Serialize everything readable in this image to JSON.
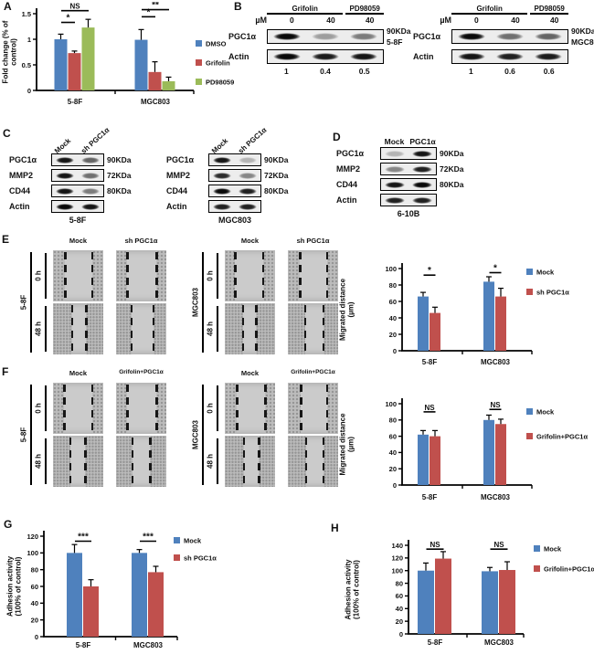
{
  "panels": {
    "A": {
      "label": "A"
    },
    "B": {
      "label": "B",
      "groups": [
        {
          "unit_label": "µM",
          "treatments": [
            {
              "name": "Grifolin",
              "lanes": 2
            },
            {
              "name": "PD98059",
              "lanes": 1
            }
          ],
          "doses": [
            "0",
            "40",
            "40"
          ],
          "rows": [
            {
              "protein": "PGC1α",
              "kda": "90KDa",
              "bands": [
                1,
                0.35,
                0.5
              ]
            },
            {
              "protein": "Actin",
              "kda": "",
              "bands": [
                1,
                0.92,
                0.95
              ]
            }
          ],
          "cell_line": "5-8F",
          "quantification": [
            "1",
            "0.4",
            "0.5"
          ]
        },
        {
          "unit_label": "µM",
          "treatments": [
            {
              "name": "Grifolin",
              "lanes": 2
            },
            {
              "name": "PD98059",
              "lanes": 1
            }
          ],
          "doses": [
            "0",
            "40",
            "40"
          ],
          "rows": [
            {
              "protein": "PGC1α",
              "kda": "90KDa",
              "bands": [
                1,
                0.55,
                0.6
              ]
            },
            {
              "protein": "Actin",
              "kda": "",
              "bands": [
                0.95,
                0.9,
                0.92
              ]
            }
          ],
          "cell_line": "MGC803",
          "quantification": [
            "1",
            "0.6",
            "0.6"
          ]
        }
      ]
    },
    "C": {
      "label": "C",
      "groups": [
        {
          "columns": [
            "Mock",
            "sh PGC1α"
          ],
          "rows": [
            {
              "protein": "PGC1α",
              "kda": "90KDa",
              "bands": [
                0.95,
                0.6
              ]
            },
            {
              "protein": "MMP2",
              "kda": "72KDa",
              "bands": [
                0.95,
                0.55
              ]
            },
            {
              "protein": "CD44",
              "kda": "80KDa",
              "bands": [
                0.95,
                0.5
              ]
            },
            {
              "protein": "Actin",
              "kda": "",
              "bands": [
                1,
                0.95
              ]
            }
          ],
          "cell_line": "5-8F"
        },
        {
          "columns": [
            "Mock",
            "sh PGC1α"
          ],
          "rows": [
            {
              "protein": "PGC1α",
              "kda": "90KDa",
              "bands": [
                0.95,
                0.25
              ]
            },
            {
              "protein": "MMP2",
              "kda": "72KDa",
              "bands": [
                0.85,
                0.45
              ]
            },
            {
              "protein": "CD44",
              "kda": "80KDa",
              "bands": [
                1,
                0.9
              ]
            },
            {
              "protein": "Actin",
              "kda": "",
              "bands": [
                0.9,
                0.9
              ]
            }
          ],
          "cell_line": "MGC803"
        }
      ]
    },
    "D": {
      "label": "D",
      "columns": [
        "Mock",
        "PGC1α"
      ],
      "rows": [
        {
          "protein": "PGC1α",
          "kda": "90KDa",
          "bands": [
            0.25,
            0.95
          ]
        },
        {
          "protein": "MMP2",
          "kda": "72KDa",
          "bands": [
            0.45,
            0.9
          ]
        },
        {
          "protein": "CD44",
          "kda": "80KDa",
          "bands": [
            0.95,
            1
          ]
        },
        {
          "protein": "Actin",
          "kda": "",
          "bands": [
            0.9,
            0.9
          ]
        }
      ],
      "cell_line": "6-10B"
    },
    "E": {
      "label": "E",
      "image_groups": [
        {
          "cell_line": "5-8F",
          "columns": [
            "Mock",
            "sh PGC1α"
          ],
          "rows": [
            {
              "label": "0 h",
              "gaps": [
                [
                  24,
                  78
                ],
                [
                  22,
                  80
                ]
              ]
            },
            {
              "label": "48 h",
              "gaps": [
                [
                  38,
                  66
                ],
                [
                  30,
                  74
                ]
              ]
            }
          ]
        },
        {
          "cell_line": "MGC803",
          "columns": [
            "Mock",
            "sh PGC1α"
          ],
          "rows": [
            {
              "label": "0 h",
              "gaps": [
                [
                  20,
                  76
                ],
                [
                  24,
                  78
                ]
              ]
            },
            {
              "label": "48 h",
              "gaps": [
                [
                  36,
                  62
                ],
                [
                  34,
                  70
                ]
              ]
            }
          ]
        }
      ]
    },
    "F": {
      "label": "F",
      "image_groups": [
        {
          "cell_line": "5-8F",
          "columns": [
            "Mock",
            "Grifolin+PGC1α"
          ],
          "rows": [
            {
              "label": "0 h",
              "gaps": [
                [
                  22,
                  78
                ],
                [
                  22,
                  80
                ]
              ]
            },
            {
              "label": "48 h",
              "gaps": [
                [
                  34,
                  64
                ],
                [
                  32,
                  68
                ]
              ]
            }
          ]
        },
        {
          "cell_line": "MGC803",
          "columns": [
            "Mock",
            "Grifolin+PGC1α"
          ],
          "rows": [
            {
              "label": "0 h",
              "gaps": [
                [
                  24,
                  80
                ],
                [
                  26,
                  78
                ]
              ]
            },
            {
              "label": "48 h",
              "gaps": [
                [
                  38,
                  68
                ],
                [
                  36,
                  70
                ]
              ]
            }
          ]
        }
      ]
    },
    "G": {
      "label": "G"
    },
    "H": {
      "label": "H"
    }
  },
  "chart_data": [
    {
      "id": "panel-A",
      "type": "bar",
      "categories": [
        "5-8F",
        "MGC803"
      ],
      "series": [
        {
          "name": "DMSO",
          "color": "#4F81BD",
          "values": [
            1.0,
            0.99
          ],
          "errors": [
            0.1,
            0.2
          ]
        },
        {
          "name": "Grifolin",
          "color": "#C0504D",
          "values": [
            0.73,
            0.36
          ],
          "errors": [
            0.04,
            0.2
          ]
        },
        {
          "name": "PD98059",
          "color": "#9BBB59",
          "values": [
            1.23,
            0.18
          ],
          "errors": [
            0.16,
            0.08
          ]
        }
      ],
      "ylabel": "Fold change (% of\ncontrol)",
      "xlabel": "",
      "ylim": [
        0,
        1.5
      ],
      "yticks": [
        "0",
        "0.5",
        "1",
        "1.5"
      ],
      "legend_position": "right",
      "grid": false,
      "significance": [
        {
          "group": 0,
          "from": 0,
          "to": 1,
          "label": "*",
          "y": 1.33
        },
        {
          "group": 0,
          "from": 0,
          "to": 2,
          "label": "NS",
          "y": 1.56
        },
        {
          "group": 1,
          "from": 0,
          "to": 1,
          "label": "*",
          "y": 1.44
        },
        {
          "group": 1,
          "from": 0,
          "to": 2,
          "label": "**",
          "y": 1.58
        }
      ]
    },
    {
      "id": "panel-E",
      "type": "bar",
      "categories": [
        "5-8F",
        "MGC803"
      ],
      "series": [
        {
          "name": "Mock",
          "color": "#4F81BD",
          "values": [
            66,
            84
          ],
          "errors": [
            5,
            6
          ]
        },
        {
          "name": "sh PGC1α",
          "color": "#C0504D",
          "values": [
            46,
            66
          ],
          "errors": [
            7,
            10
          ]
        }
      ],
      "ylabel": "Migrated distance\n(µm)",
      "xlabel": "",
      "ylim": [
        0,
        100
      ],
      "yticks": [
        "0",
        "20",
        "40",
        "60",
        "80",
        "100"
      ],
      "legend_position": "right",
      "grid": false,
      "significance": [
        {
          "group": 0,
          "from": 0,
          "to": 1,
          "label": "*",
          "y": 92
        },
        {
          "group": 1,
          "from": 0,
          "to": 1,
          "label": "*",
          "y": 95
        }
      ]
    },
    {
      "id": "panel-F",
      "type": "bar",
      "categories": [
        "5-8F",
        "MGC803"
      ],
      "series": [
        {
          "name": "Mock",
          "color": "#4F81BD",
          "values": [
            62,
            80
          ],
          "errors": [
            5,
            6
          ]
        },
        {
          "name": "Grifolin+PGC1α",
          "color": "#C0504D",
          "values": [
            60,
            75
          ],
          "errors": [
            7,
            6
          ]
        }
      ],
      "ylabel": "Migrated distance\n(µm)",
      "xlabel": "",
      "ylim": [
        0,
        100
      ],
      "yticks": [
        "0",
        "20",
        "40",
        "60",
        "80",
        "100"
      ],
      "legend_position": "right",
      "grid": false,
      "significance": [
        {
          "group": 0,
          "from": 0,
          "to": 1,
          "label": "NS",
          "y": 90
        },
        {
          "group": 1,
          "from": 0,
          "to": 1,
          "label": "NS",
          "y": 93
        }
      ]
    },
    {
      "id": "panel-G",
      "type": "bar",
      "categories": [
        "5-8F",
        "MGC803"
      ],
      "series": [
        {
          "name": "Mock",
          "color": "#4F81BD",
          "values": [
            100,
            100
          ],
          "errors": [
            10,
            4
          ]
        },
        {
          "name": "sh PGC1α",
          "color": "#C0504D",
          "values": [
            60,
            77
          ],
          "errors": [
            8,
            7
          ]
        }
      ],
      "ylabel": "Adhesion activity\n(100% of control)",
      "xlabel": "",
      "ylim": [
        0,
        120
      ],
      "yticks": [
        "0",
        "20",
        "40",
        "60",
        "80",
        "100",
        "120"
      ],
      "legend_position": "right",
      "grid": false,
      "significance": [
        {
          "group": 0,
          "from": 0,
          "to": 1,
          "label": "***",
          "y": 114
        },
        {
          "group": 1,
          "from": 0,
          "to": 1,
          "label": "***",
          "y": 114
        }
      ]
    },
    {
      "id": "panel-H",
      "type": "bar",
      "categories": [
        "5-8F",
        "MGC803"
      ],
      "series": [
        {
          "name": "Mock",
          "color": "#4F81BD",
          "values": [
            100,
            99
          ],
          "errors": [
            12,
            6
          ]
        },
        {
          "name": "Grifolin+PGC1α",
          "color": "#C0504D",
          "values": [
            119,
            101
          ],
          "errors": [
            11,
            13
          ]
        }
      ],
      "ylabel": "Adhesion activity\n(100% of control)",
      "xlabel": "",
      "ylim": [
        0,
        140
      ],
      "yticks": [
        "0",
        "20",
        "40",
        "60",
        "80",
        "100",
        "120",
        "140"
      ],
      "legend_position": "right",
      "grid": false,
      "significance": [
        {
          "group": 0,
          "from": 0,
          "to": 1,
          "label": "NS",
          "y": 134
        },
        {
          "group": 1,
          "from": 0,
          "to": 1,
          "label": "NS",
          "y": 134
        }
      ]
    }
  ]
}
